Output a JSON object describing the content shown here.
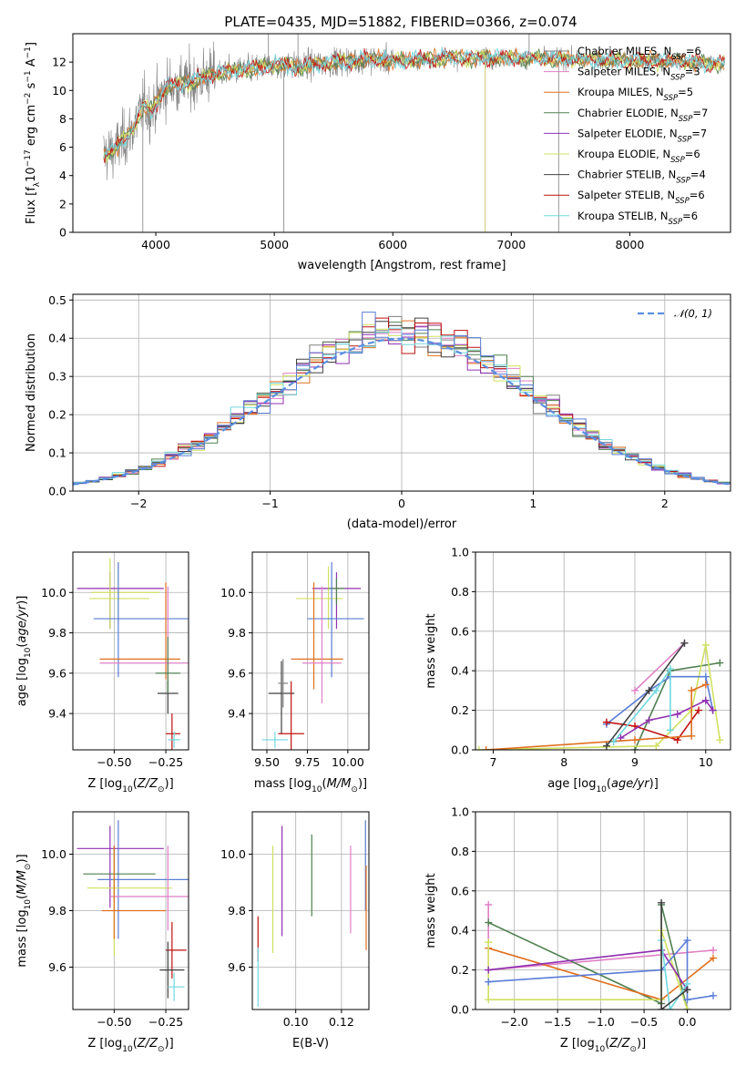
{
  "figure": {
    "title": "PLATE=0435, MJD=51882, FIBERID=0366, z=0.074"
  },
  "colors": {
    "Chabrier MILES": "#808080",
    "Salpeter MILES": "#e07fc6",
    "Kroupa MILES": "#e07020",
    "Chabrier ELODIE": "#4f8050",
    "Salpeter ELODIE": "#9030b0",
    "Kroupa ELODIE": "#d0e060",
    "Chabrier STELIB": "#404040",
    "Salpeter STELIB": "#c01010",
    "Kroupa STELIB": "#70d8e0",
    "extra": "#5a7dd6",
    "gaussian": "#5a8fe0"
  },
  "chart_data": [
    {
      "id": "spectrum",
      "type": "line",
      "xlabel": "wavelength [Angstrom, rest frame]",
      "ylabel_parts": [
        "Flux [f",
        "λ",
        "10",
        "−17",
        " erg cm",
        "−2",
        " s",
        "−1",
        " A",
        "−1",
        "]"
      ],
      "xlim": [
        3300,
        8850
      ],
      "ylim": [
        0,
        14
      ],
      "xticks": [
        4000,
        5000,
        6000,
        7000,
        8000
      ],
      "yticks": [
        0,
        2,
        4,
        6,
        8,
        10,
        12
      ],
      "legend_position": "right",
      "legend": [
        {
          "name": "Chabrier MILES",
          "nssp": "6"
        },
        {
          "name": "Salpeter MILES",
          "nssp": "3"
        },
        {
          "name": "Kroupa MILES",
          "nssp": "5"
        },
        {
          "name": "Chabrier ELODIE",
          "nssp": "7"
        },
        {
          "name": "Salpeter ELODIE",
          "nssp": "7"
        },
        {
          "name": "Kroupa ELODIE",
          "nssp": "6"
        },
        {
          "name": "Chabrier STELIB",
          "nssp": "4"
        },
        {
          "name": "Salpeter STELIB",
          "nssp": "6"
        },
        {
          "name": "Kroupa STELIB",
          "nssp": "6"
        }
      ],
      "continuum": [
        [
          3560,
          5.5
        ],
        [
          3650,
          5.8
        ],
        [
          3800,
          7.2
        ],
        [
          3900,
          9.0
        ],
        [
          3950,
          8.5
        ],
        [
          4100,
          10.3
        ],
        [
          4300,
          10.6
        ],
        [
          4500,
          11.2
        ],
        [
          4800,
          11.5
        ],
        [
          5000,
          11.8
        ],
        [
          5200,
          11.7
        ],
        [
          5500,
          12.0
        ],
        [
          5800,
          12.2
        ],
        [
          6000,
          12.1
        ],
        [
          6500,
          12.3
        ],
        [
          7000,
          12.3
        ],
        [
          7500,
          12.2
        ],
        [
          8000,
          12.1
        ],
        [
          8500,
          12.0
        ],
        [
          8800,
          11.9
        ]
      ]
    },
    {
      "id": "residuals",
      "type": "step",
      "xlabel": "(data-model)/error",
      "ylabel": "Normed distribution",
      "xlim": [
        -2.5,
        2.5
      ],
      "ylim": [
        0,
        0.515
      ],
      "xticks": [
        -2,
        -1,
        0,
        1,
        2
      ],
      "yticks": [
        0.0,
        0.1,
        0.2,
        0.3,
        0.4,
        0.5
      ],
      "legend_position": "upper right",
      "gaussian_label": "𝒩(0, 1)",
      "bin_width": 0.1
    },
    {
      "id": "age-vs-Z",
      "type": "errorbar",
      "xlabel": "Z [log10(Z/Z⊙)]",
      "ylabel": "age  [log10(age/yr)]",
      "xlim": [
        -0.7,
        -0.14
      ],
      "ylim": [
        9.22,
        10.2
      ],
      "xticks": [
        -0.5,
        -0.25
      ],
      "yticks": [
        9.4,
        9.6,
        9.8,
        10.0
      ],
      "points": [
        {
          "model": "Salpeter ELODIE",
          "x": -0.52,
          "xerr": [
            0.16,
            0.26
          ],
          "y": 10.02,
          "yerr": [
            0.2,
            0.08
          ]
        },
        {
          "model": "Kroupa ELODIE",
          "x": -0.48,
          "xerr": [
            0.13,
            0.2
          ],
          "y": 10.0,
          "yerr": [
            0.14,
            0.15
          ]
        },
        {
          "model": "Kroupa ELODIE",
          "x": -0.52,
          "xerr": [
            0.1,
            0.19
          ],
          "y": 9.97,
          "yerr": [
            0.15,
            0.2
          ]
        },
        {
          "model": "extra",
          "x": -0.48,
          "xerr": [
            0.12,
            0.34
          ],
          "y": 9.87,
          "yerr": [
            0.29,
            0.28
          ]
        },
        {
          "model": "Kroupa MILES",
          "x": -0.25,
          "xerr": [
            0.32,
            0.07
          ],
          "y": 9.67,
          "yerr": [
            0.1,
            0.38
          ]
        },
        {
          "model": "Salpeter MILES",
          "x": -0.24,
          "xerr": [
            0.33,
            0.1
          ],
          "y": 9.65,
          "yerr": [
            0.1,
            0.38
          ]
        },
        {
          "model": "Chabrier STELIB",
          "x": -0.24,
          "xerr": [
            0.05,
            0.05
          ],
          "y": 9.5,
          "yerr": [
            0.1,
            0.06
          ]
        },
        {
          "model": "Salpeter STELIB",
          "x": -0.22,
          "xerr": [
            0.03,
            0.04
          ],
          "y": 9.3,
          "yerr": [
            0.1,
            0.1
          ]
        },
        {
          "model": "Kroupa STELIB",
          "x": -0.21,
          "xerr": [
            0.03,
            0.03
          ],
          "y": 9.27,
          "yerr": [
            0.04,
            0.04
          ]
        },
        {
          "model": "Chabrier ELODIE",
          "x": -0.24,
          "xerr": [
            0.06,
            0.06
          ],
          "y": 9.6,
          "yerr": [
            0.1,
            0.18
          ]
        }
      ]
    },
    {
      "id": "age-vs-mass",
      "type": "errorbar",
      "xlabel": "mass [log10(M/M⊙)]",
      "ylabel": "",
      "xlim": [
        9.41,
        10.13
      ],
      "ylim": [
        9.22,
        10.2
      ],
      "xticks": [
        9.5,
        9.75,
        10.0
      ],
      "yticks": [
        9.4,
        9.6,
        9.8,
        10.0
      ],
      "points": [
        {
          "model": "Salpeter ELODIE",
          "x": 9.93,
          "xerr": [
            0.15,
            0.15
          ],
          "y": 10.02,
          "yerr": [
            0.2,
            0.08
          ]
        },
        {
          "model": "Kroupa ELODIE",
          "x": 9.88,
          "xerr": [
            0.2,
            0.09
          ],
          "y": 9.97,
          "yerr": [
            0.15,
            0.16
          ]
        },
        {
          "model": "Chabrier ELODIE",
          "x": 9.93,
          "xerr": [
            0.05,
            0.05
          ],
          "y": 10.02,
          "yerr": [
            0.08,
            0.05
          ]
        },
        {
          "model": "extra",
          "x": 9.9,
          "xerr": [
            0.15,
            0.2
          ],
          "y": 9.87,
          "yerr": [
            0.29,
            0.28
          ]
        },
        {
          "model": "Kroupa MILES",
          "x": 9.79,
          "xerr": [
            0.14,
            0.18
          ],
          "y": 9.67,
          "yerr": [
            0.15,
            0.38
          ]
        },
        {
          "model": "Salpeter MILES",
          "x": 9.84,
          "xerr": [
            0.12,
            0.12
          ],
          "y": 9.65,
          "yerr": [
            0.2,
            0.38
          ]
        },
        {
          "model": "Chabrier STELIB",
          "x": 9.59,
          "xerr": [
            0.08,
            0.08
          ],
          "y": 9.5,
          "yerr": [
            0.2,
            0.16
          ]
        },
        {
          "model": "Chabrier MILES",
          "x": 9.6,
          "xerr": [
            0.03,
            0.03
          ],
          "y": 9.55,
          "yerr": [
            0.12,
            0.12
          ]
        },
        {
          "model": "Salpeter STELIB",
          "x": 9.65,
          "xerr": [
            0.08,
            0.08
          ],
          "y": 9.3,
          "yerr": [
            0.1,
            0.26
          ]
        },
        {
          "model": "Kroupa STELIB",
          "x": 9.55,
          "xerr": [
            0.08,
            0.08
          ],
          "y": 9.27,
          "yerr": [
            0.04,
            0.04
          ]
        }
      ]
    },
    {
      "id": "weights-vs-age",
      "type": "line",
      "xlabel": "age  [log10(age/yr)]",
      "ylabel": "mass weight",
      "xlim": [
        6.75,
        10.35
      ],
      "ylim": [
        0,
        1
      ],
      "xticks": [
        7,
        8,
        9,
        10
      ],
      "yticks": [
        0.0,
        0.2,
        0.4,
        0.6,
        0.8,
        1.0
      ],
      "series": [
        {
          "model": "Salpeter MILES",
          "points": [
            [
              9.0,
              0.3
            ],
            [
              9.7,
              0.54
            ]
          ]
        },
        {
          "model": "Chabrier ELODIE",
          "points": [
            [
              9.0,
              0.0
            ],
            [
              9.5,
              0.4
            ],
            [
              10.2,
              0.44
            ]
          ]
        },
        {
          "model": "Kroupa ELODIE",
          "points": [
            [
              6.8,
              0.0
            ],
            [
              9.3,
              0.02
            ],
            [
              9.8,
              0.2
            ],
            [
              10.0,
              0.53
            ],
            [
              10.2,
              0.05
            ]
          ]
        },
        {
          "model": "extra",
          "points": [
            [
              8.6,
              0.13
            ],
            [
              9.2,
              0.3
            ],
            [
              9.5,
              0.37
            ],
            [
              10.0,
              0.37
            ],
            [
              10.1,
              0.2
            ]
          ]
        },
        {
          "model": "Salpeter STELIB",
          "points": [
            [
              8.6,
              0.14
            ],
            [
              9.0,
              0.12
            ],
            [
              9.6,
              0.05
            ],
            [
              9.9,
              0.2
            ]
          ]
        },
        {
          "model": "Salpeter ELODIE",
          "points": [
            [
              8.8,
              0.06
            ],
            [
              9.2,
              0.15
            ],
            [
              9.6,
              0.18
            ],
            [
              10.0,
              0.25
            ],
            [
              10.1,
              0.2
            ]
          ]
        },
        {
          "model": "Kroupa MILES",
          "points": [
            [
              6.9,
              0.0
            ],
            [
              9.0,
              0.05
            ],
            [
              9.8,
              0.07
            ],
            [
              9.8,
              0.3
            ],
            [
              10.0,
              0.33
            ]
          ]
        },
        {
          "model": "Kroupa STELIB",
          "points": [
            [
              8.7,
              0.04
            ],
            [
              9.3,
              0.3
            ],
            [
              9.5,
              0.41
            ],
            [
              9.5,
              0.1
            ]
          ]
        },
        {
          "model": "Chabrier STELIB",
          "points": [
            [
              8.6,
              0.02
            ],
            [
              9.2,
              0.3
            ],
            [
              9.7,
              0.54
            ]
          ]
        }
      ]
    },
    {
      "id": "mass-vs-Z",
      "type": "errorbar",
      "xlabel": "Z [log10(Z/Z⊙)]",
      "ylabel": "mass [log10(M/M⊙)]",
      "xlim": [
        -0.7,
        -0.14
      ],
      "ylim": [
        9.45,
        10.15
      ],
      "xticks": [
        -0.5,
        -0.25
      ],
      "yticks": [
        9.6,
        9.8,
        10.0
      ],
      "points": [
        {
          "model": "Salpeter ELODIE",
          "x": -0.52,
          "xerr": [
            0.16,
            0.26
          ],
          "y": 10.02,
          "yerr": [
            0.21,
            0.08
          ]
        },
        {
          "model": "extra",
          "x": -0.48,
          "xerr": [
            0.1,
            0.34
          ],
          "y": 9.91,
          "yerr": [
            0.21,
            0.21
          ]
        },
        {
          "model": "Chabrier ELODIE",
          "x": -0.5,
          "xerr": [
            0.15,
            0.2
          ],
          "y": 9.93,
          "yerr": [
            0.1,
            0.1
          ]
        },
        {
          "model": "Kroupa ELODIE",
          "x": -0.5,
          "xerr": [
            0.13,
            0.28
          ],
          "y": 9.88,
          "yerr": [
            0.24,
            0.09
          ]
        },
        {
          "model": "Salpeter MILES",
          "x": -0.24,
          "xerr": [
            0.28,
            0.1
          ],
          "y": 9.85,
          "yerr": [
            0.12,
            0.18
          ]
        },
        {
          "model": "Kroupa MILES",
          "x": -0.5,
          "xerr": [
            0.06,
            0.25
          ],
          "y": 9.8,
          "yerr": [
            0.1,
            0.23
          ]
        },
        {
          "model": "Salpeter STELIB",
          "x": -0.22,
          "xerr": [
            0.03,
            0.07
          ],
          "y": 9.66,
          "yerr": [
            0.1,
            0.1
          ]
        },
        {
          "model": "Chabrier STELIB",
          "x": -0.24,
          "xerr": [
            0.04,
            0.08
          ],
          "y": 9.59,
          "yerr": [
            0.1,
            0.1
          ]
        },
        {
          "model": "Kroupa STELIB",
          "x": -0.21,
          "xerr": [
            0.03,
            0.05
          ],
          "y": 9.53,
          "yerr": [
            0.05,
            0.05
          ]
        }
      ]
    },
    {
      "id": "mass-vs-ebv",
      "type": "errorbar",
      "xlabel": "E(B-V)",
      "ylabel": "",
      "xlim": [
        0.081,
        0.132
      ],
      "ylim": [
        9.45,
        10.15
      ],
      "xticks": [
        0.1,
        0.12
      ],
      "yticks": [
        9.6,
        9.8,
        10.0
      ],
      "points": [
        {
          "model": "Salpeter STELIB",
          "x": 0.0835,
          "yerr_range": [
            9.62,
            9.78
          ]
        },
        {
          "model": "Kroupa STELIB",
          "x": 0.0835,
          "yerr_range": [
            9.46,
            9.67
          ]
        },
        {
          "model": "Kroupa ELODIE",
          "x": 0.09,
          "yerr_range": [
            9.65,
            10.03
          ]
        },
        {
          "model": "Salpeter ELODIE",
          "x": 0.094,
          "yerr_range": [
            9.71,
            10.1
          ]
        },
        {
          "model": "Chabrier ELODIE",
          "x": 0.107,
          "yerr_range": [
            9.78,
            10.07
          ]
        },
        {
          "model": "Salpeter MILES",
          "x": 0.124,
          "yerr_range": [
            9.72,
            10.03
          ]
        },
        {
          "model": "extra",
          "x": 0.1305,
          "yerr_range": [
            9.8,
            10.12
          ]
        },
        {
          "model": "Kroupa MILES",
          "x": 0.1308,
          "yerr_range": [
            9.66,
            9.96
          ]
        }
      ]
    },
    {
      "id": "weights-vs-Z",
      "type": "line",
      "xlabel": "Z [log10(Z/Z⊙)]",
      "ylabel": "mass weight",
      "xlim": [
        -2.45,
        0.5
      ],
      "ylim": [
        0,
        1
      ],
      "xticks": [
        -2.0,
        -1.5,
        -1.0,
        -0.5,
        0.0
      ],
      "yticks": [
        0.0,
        0.2,
        0.4,
        0.6,
        0.8,
        1.0
      ],
      "series": [
        {
          "model": "Salpeter MILES",
          "points": [
            [
              -2.3,
              0.53
            ],
            [
              -2.3,
              0.2
            ],
            [
              0.3,
              0.3
            ]
          ]
        },
        {
          "model": "Chabrier ELODIE",
          "points": [
            [
              -2.3,
              0.44
            ],
            [
              -0.3,
              0.03
            ],
            [
              -0.3,
              0.53
            ],
            [
              0.0,
              0.0
            ]
          ]
        },
        {
          "model": "Kroupa MILES",
          "points": [
            [
              -2.3,
              0.31
            ],
            [
              -0.3,
              0.05
            ],
            [
              0.3,
              0.26
            ]
          ]
        },
        {
          "model": "Kroupa ELODIE",
          "points": [
            [
              -2.3,
              0.34
            ],
            [
              -2.3,
              0.05
            ],
            [
              -0.3,
              0.05
            ],
            [
              -0.3,
              0.4
            ],
            [
              0.0,
              0.0
            ]
          ]
        },
        {
          "model": "Salpeter ELODIE",
          "points": [
            [
              -2.3,
              0.2
            ],
            [
              -0.3,
              0.3
            ],
            [
              0.0,
              0.1
            ]
          ]
        },
        {
          "model": "extra",
          "points": [
            [
              -2.3,
              0.14
            ],
            [
              -0.3,
              0.2
            ],
            [
              0.0,
              0.35
            ],
            [
              0.0,
              0.05
            ],
            [
              0.3,
              0.07
            ]
          ]
        },
        {
          "model": "Kroupa STELIB",
          "points": [
            [
              -0.3,
              0.35
            ],
            [
              -0.2,
              0.0
            ],
            [
              0.0,
              0.13
            ]
          ]
        },
        {
          "model": "Chabrier STELIB",
          "points": [
            [
              -0.3,
              0.54
            ],
            [
              -0.3,
              0.0
            ],
            [
              0.0,
              0.1
            ]
          ]
        }
      ]
    }
  ]
}
